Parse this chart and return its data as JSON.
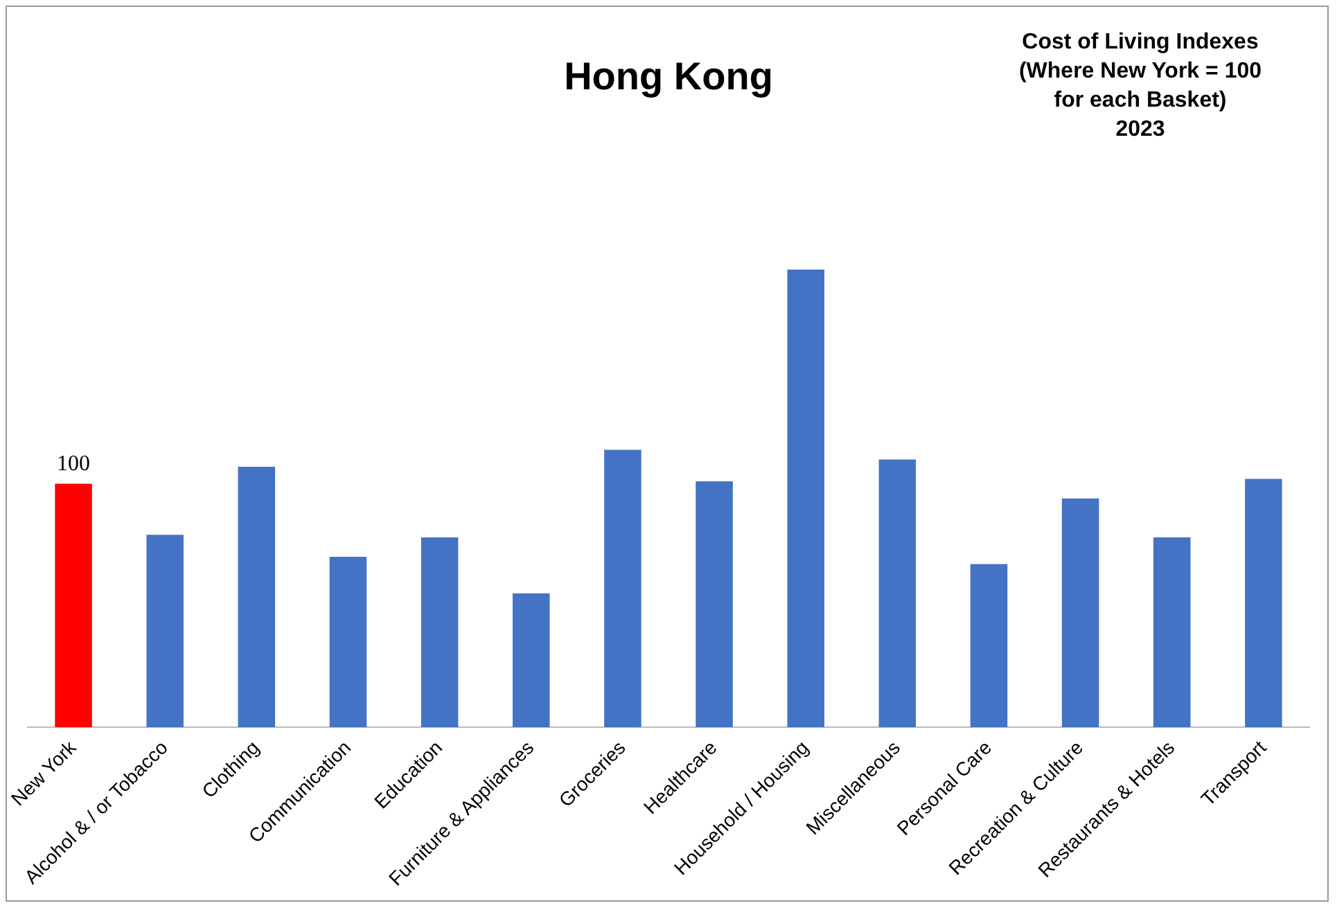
{
  "chart_data": {
    "type": "bar",
    "title": "Hong Kong",
    "subtitle": "Cost of Living Indexes\n(Where New York = 100\nfor each Basket)\n2023",
    "categories": [
      "New York",
      "Alcohol & / or Tobacco",
      "Clothing",
      "Communication",
      "Education",
      "Furniture & Appliances",
      "Groceries",
      "Healthcare",
      "Household / Housing",
      "Miscellaneous",
      "Personal Care",
      "Recreation & Culture",
      "Restaurants & Hotels",
      "Transport"
    ],
    "values": [
      100,
      79,
      107,
      70,
      78,
      55,
      114,
      101,
      188,
      110,
      67,
      94,
      78,
      102
    ],
    "colors": [
      "#ff0000",
      "#4472c4",
      "#4472c4",
      "#4472c4",
      "#4472c4",
      "#4472c4",
      "#4472c4",
      "#4472c4",
      "#4472c4",
      "#4472c4",
      "#4472c4",
      "#4472c4",
      "#4472c4",
      "#4472c4"
    ],
    "value_labels": [
      "100",
      null,
      null,
      null,
      null,
      null,
      null,
      null,
      null,
      null,
      null,
      null,
      null,
      null
    ],
    "grid": false,
    "legend": false,
    "tick_labels": "x"
  }
}
